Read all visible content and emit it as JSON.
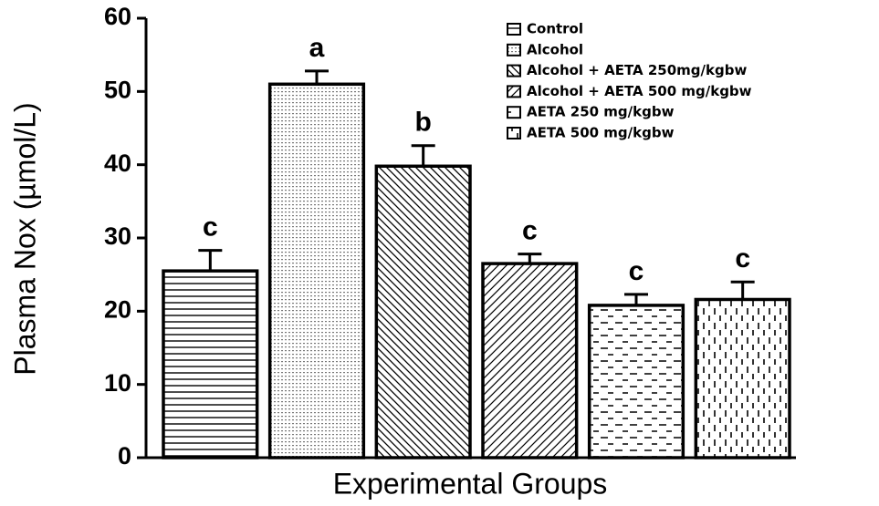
{
  "chart_data": {
    "type": "bar",
    "ylabel": "Plasma Nox (µmol/L)",
    "xlabel": "Experimental Groups",
    "ylim": [
      0,
      60
    ],
    "yticks": [
      0,
      10,
      20,
      30,
      40,
      50,
      60
    ],
    "color": "#000000",
    "series": [
      {
        "name": "Control",
        "pattern": "hlines",
        "values": [
          25.5
        ],
        "errors": [
          2.8
        ],
        "letters": [
          "c"
        ]
      },
      {
        "name": "Alcohol",
        "pattern": "dots",
        "values": [
          51
        ],
        "errors": [
          1.8
        ],
        "letters": [
          "a"
        ]
      },
      {
        "name": "Alcohol + AETA 250mg/kgbw",
        "pattern": "backdiag",
        "values": [
          39.8
        ],
        "errors": [
          2.8
        ],
        "letters": [
          "b"
        ]
      },
      {
        "name": "Alcohol + AETA 500 mg/kgbw",
        "pattern": "fwddiag",
        "values": [
          26.5
        ],
        "errors": [
          1.3
        ],
        "letters": [
          "c"
        ]
      },
      {
        "name": "AETA 250 mg/kgbw",
        "pattern": "hdash",
        "values": [
          20.8
        ],
        "errors": [
          1.5
        ],
        "letters": [
          "c"
        ]
      },
      {
        "name": "AETA 500 mg/kgbw",
        "pattern": "vdash",
        "values": [
          21.6
        ],
        "errors": [
          2.4
        ],
        "letters": [
          "c"
        ]
      }
    ]
  }
}
